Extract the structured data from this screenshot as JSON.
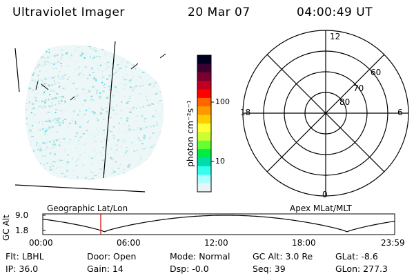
{
  "header": {
    "instrument": "Ultraviolet Imager",
    "date": "20 Mar 07",
    "time": "04:00:49  UT"
  },
  "colorbar": {
    "unit_label": "photon cm⁻²s⁻¹",
    "ticks": [
      "100",
      "10"
    ],
    "colors": [
      "#000020",
      "#3a0030",
      "#7a0030",
      "#c00020",
      "#ff0000",
      "#ff6600",
      "#ff9900",
      "#ffcc00",
      "#ffff33",
      "#ccff33",
      "#66ff33",
      "#00ee44",
      "#00ddaa",
      "#33ffee",
      "#aaffff",
      "#e8f4f6"
    ]
  },
  "polar_plot": {
    "mlt_labels": {
      "top": "12",
      "left": "18",
      "right": "6",
      "bottom": "0"
    },
    "lat_labels": [
      "60",
      "70",
      "80"
    ]
  },
  "timeline": {
    "geo_label": "Geographic Lat/Lon",
    "apex_label": "Apex  MLat/MLT",
    "y_axis_label": "GC Alt",
    "y_ticks": [
      "9.0",
      "1.8"
    ],
    "x_ticks": [
      "00:00",
      "06:00",
      "12:00",
      "18:00",
      "23:59"
    ],
    "marker_color": "#cc0000"
  },
  "footer": {
    "row1": {
      "flt": "Flt: LBHL",
      "door": "Door: Open",
      "mode": "Mode: Normal",
      "gcalt": "GC Alt: 3.0 Re",
      "glat": "GLat:  -8.6"
    },
    "row2": {
      "ip": "IP: 36.0",
      "gain": "Gain: 14",
      "dsp": "Dsp:   -0.0",
      "seq": "Seq: 39",
      "glon": "GLon: 277.3"
    }
  }
}
